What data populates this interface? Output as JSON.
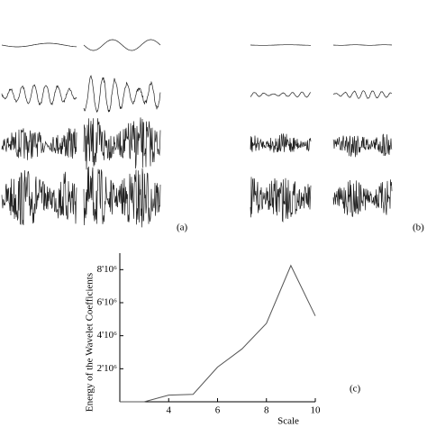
{
  "panel_labels": [
    "(a)",
    "(b)"
  ],
  "chart_data": {
    "type": "line",
    "panel_label": "(c)",
    "y_label": "Energy of the Wavelet Coefficients",
    "x_label": "Scale",
    "x": [
      2,
      3,
      4,
      5,
      6,
      7,
      8,
      9,
      10
    ],
    "series": [
      {
        "name": "Energy",
        "color": "#555555",
        "values": [
          0,
          0,
          400000,
          450000,
          2100000,
          3200000,
          4750000,
          8250000,
          5200000
        ]
      }
    ],
    "xlim": [
      2,
      10
    ],
    "xticks": [
      4,
      6,
      8,
      10
    ],
    "ylim": [
      0,
      9000000
    ],
    "yticks": [
      {
        "value": 2000000,
        "label": "2'10⁶"
      },
      {
        "value": 4000000,
        "label": "4'10⁶"
      },
      {
        "value": 6000000,
        "label": "6'10⁶"
      },
      {
        "value": 8000000,
        "label": "8'10⁶"
      }
    ]
  }
}
